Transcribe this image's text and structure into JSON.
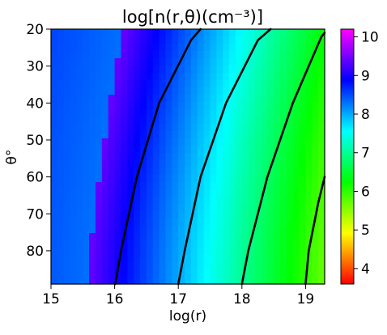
{
  "chart_data": {
    "type": "heatmap",
    "title": "log[n(r,θ)(cm⁻³)]",
    "xlabel": "log(r)",
    "ylabel": "θ°",
    "xlim": [
      15.0,
      19.3
    ],
    "ylim": [
      89,
      20
    ],
    "x_ticks": [
      "15",
      "16",
      "17",
      "18",
      "19"
    ],
    "y_ticks": [
      "20",
      "30",
      "40",
      "50",
      "60",
      "70",
      "80"
    ],
    "x_tick_values": [
      15,
      16,
      17,
      18,
      19
    ],
    "y_tick_values": [
      20,
      30,
      40,
      50,
      60,
      70,
      80
    ],
    "colorbar": {
      "range": [
        3.6,
        10.2
      ],
      "ticks": [
        "4",
        "5",
        "6",
        "7",
        "8",
        "9",
        "10"
      ],
      "tick_values": [
        4,
        5,
        6,
        7,
        8,
        9,
        10
      ],
      "colormap": "gist_rainbow"
    },
    "contours": [
      {
        "level": 7,
        "points": [
          [
            16.01,
            89
          ],
          [
            16.1,
            80
          ],
          [
            16.35,
            60
          ],
          [
            16.7,
            40
          ],
          [
            17.2,
            23
          ],
          [
            17.35,
            20
          ]
        ]
      },
      {
        "level": 6,
        "points": [
          [
            17.0,
            89
          ],
          [
            17.1,
            80
          ],
          [
            17.35,
            60
          ],
          [
            17.75,
            40
          ],
          [
            18.25,
            23
          ],
          [
            18.45,
            20
          ]
        ]
      },
      {
        "level": 5,
        "points": [
          [
            18.0,
            89
          ],
          [
            18.1,
            80
          ],
          [
            18.4,
            60
          ],
          [
            18.8,
            40
          ],
          [
            19.25,
            22
          ],
          [
            19.3,
            21
          ]
        ]
      },
      {
        "level": 4,
        "points": [
          [
            19.0,
            89
          ],
          [
            19.05,
            80
          ],
          [
            19.2,
            67
          ],
          [
            19.3,
            60
          ]
        ]
      }
    ]
  }
}
